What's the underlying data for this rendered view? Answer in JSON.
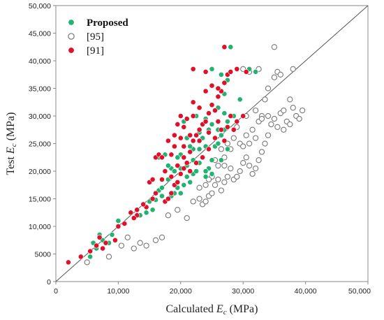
{
  "chart_data": {
    "type": "scatter",
    "title": "",
    "xlabel": {
      "prefix": "Calculated ",
      "var": "E",
      "sub": "c",
      "suffix": " (MPa)"
    },
    "ylabel": {
      "prefix": "Test ",
      "var": "E",
      "sub": "c",
      "suffix": " (MPa)"
    },
    "xlim": [
      0,
      50000
    ],
    "ylim": [
      0,
      50000
    ],
    "xticks": [
      0,
      10000,
      20000,
      30000,
      40000,
      50000
    ],
    "xtick_labels": [
      "0",
      "10,000",
      "20,000",
      "30,000",
      "40,000",
      "50,000"
    ],
    "yticks": [
      0,
      5000,
      10000,
      15000,
      20000,
      25000,
      30000,
      35000,
      40000,
      45000,
      50000
    ],
    "ytick_labels": [
      "0",
      "5000",
      "10,000",
      "15,000",
      "20,000",
      "25,000",
      "30,000",
      "35,000",
      "40,000",
      "45,000",
      "50,000"
    ],
    "grid": false,
    "legend_position": "top-left",
    "reference_line": {
      "from": [
        0,
        0
      ],
      "to": [
        50000,
        50000
      ]
    },
    "series": [
      {
        "name": "Proposed",
        "marker": "filled-circle",
        "color": "#23b370",
        "points": [
          [
            5500,
            4500
          ],
          [
            6000,
            7000
          ],
          [
            6500,
            6000
          ],
          [
            7000,
            8500
          ],
          [
            7500,
            7500
          ],
          [
            8500,
            7000
          ],
          [
            9000,
            8500
          ],
          [
            10000,
            11000
          ],
          [
            13500,
            12000
          ],
          [
            14500,
            12500
          ],
          [
            15500,
            13000
          ],
          [
            16500,
            16500
          ],
          [
            17000,
            17000
          ],
          [
            17500,
            14500
          ],
          [
            18000,
            15000
          ],
          [
            18500,
            15500
          ],
          [
            19000,
            16000
          ],
          [
            19500,
            17000
          ],
          [
            20000,
            16000
          ],
          [
            20500,
            17500
          ],
          [
            21000,
            19000
          ],
          [
            21500,
            18000
          ],
          [
            22000,
            19500
          ],
          [
            22500,
            20000
          ],
          [
            23000,
            21500
          ],
          [
            23500,
            22500
          ],
          [
            24000,
            19000
          ],
          [
            24500,
            20500
          ],
          [
            25000,
            22000
          ],
          [
            25500,
            24500
          ],
          [
            26000,
            25000
          ],
          [
            26500,
            26500
          ],
          [
            27000,
            27500
          ],
          [
            27500,
            29000
          ],
          [
            24500,
            27500
          ],
          [
            25000,
            28500
          ],
          [
            23500,
            26000
          ],
          [
            22000,
            24000
          ],
          [
            21000,
            26000
          ],
          [
            20000,
            23000
          ],
          [
            19500,
            22500
          ],
          [
            18500,
            20500
          ],
          [
            18000,
            21000
          ],
          [
            17500,
            23000
          ],
          [
            16500,
            22500
          ],
          [
            20500,
            29000
          ],
          [
            22500,
            30000
          ],
          [
            24000,
            29500
          ],
          [
            26000,
            31500
          ],
          [
            27000,
            34000
          ],
          [
            27500,
            36500
          ],
          [
            28000,
            38000
          ],
          [
            26500,
            37500
          ],
          [
            25000,
            38500
          ],
          [
            29000,
            38500
          ],
          [
            31000,
            38500
          ],
          [
            32000,
            38000
          ],
          [
            28000,
            42500
          ],
          [
            24500,
            30500
          ],
          [
            23000,
            27000
          ],
          [
            21500,
            24500
          ],
          [
            19000,
            20000
          ],
          [
            18000,
            18500
          ],
          [
            17000,
            15500
          ],
          [
            16000,
            14800
          ],
          [
            15000,
            14500
          ],
          [
            26000,
            27500
          ],
          [
            27000,
            30500
          ],
          [
            28500,
            30000
          ],
          [
            29500,
            33000
          ],
          [
            21000,
            21000
          ],
          [
            22000,
            22000
          ],
          [
            20000,
            20500
          ],
          [
            23000,
            24000
          ],
          [
            24000,
            24500
          ],
          [
            25500,
            26000
          ],
          [
            26500,
            22000
          ],
          [
            27500,
            24000
          ],
          [
            25000,
            19500
          ],
          [
            24000,
            20000
          ]
        ]
      },
      {
        "name": "[95]",
        "marker": "open-circle",
        "color": "#777777",
        "points": [
          [
            5000,
            3500
          ],
          [
            8500,
            4500
          ],
          [
            10500,
            6500
          ],
          [
            11500,
            8000
          ],
          [
            12500,
            6000
          ],
          [
            13500,
            7000
          ],
          [
            14500,
            6500
          ],
          [
            16000,
            7500
          ],
          [
            17000,
            8000
          ],
          [
            18000,
            12000
          ],
          [
            19500,
            13000
          ],
          [
            21000,
            11500
          ],
          [
            22000,
            14500
          ],
          [
            23000,
            15000
          ],
          [
            23500,
            14000
          ],
          [
            24000,
            14500
          ],
          [
            24500,
            15500
          ],
          [
            25000,
            16000
          ],
          [
            25500,
            17500
          ],
          [
            26000,
            18500
          ],
          [
            26500,
            16500
          ],
          [
            27000,
            18000
          ],
          [
            27500,
            19000
          ],
          [
            28000,
            20500
          ],
          [
            28500,
            18500
          ],
          [
            29000,
            19000
          ],
          [
            29500,
            20000
          ],
          [
            30000,
            21500
          ],
          [
            30500,
            22500
          ],
          [
            31000,
            21000
          ],
          [
            31500,
            19500
          ],
          [
            32000,
            20500
          ],
          [
            32500,
            22000
          ],
          [
            33000,
            23500
          ],
          [
            33500,
            25000
          ],
          [
            34000,
            26500
          ],
          [
            34500,
            28500
          ],
          [
            35000,
            29500
          ],
          [
            35500,
            28000
          ],
          [
            36000,
            30500
          ],
          [
            36500,
            31000
          ],
          [
            37000,
            29000
          ],
          [
            37500,
            33000
          ],
          [
            38000,
            31500
          ],
          [
            38500,
            30000
          ],
          [
            39000,
            29500
          ],
          [
            39500,
            31000
          ],
          [
            34000,
            35000
          ],
          [
            35000,
            37000
          ],
          [
            35500,
            38000
          ],
          [
            36000,
            37500
          ],
          [
            38000,
            38500
          ],
          [
            30000,
            38500
          ],
          [
            31000,
            38000
          ],
          [
            32500,
            38500
          ],
          [
            33500,
            33000
          ],
          [
            32000,
            31000
          ],
          [
            30500,
            30000
          ],
          [
            29000,
            28000
          ],
          [
            28500,
            26000
          ],
          [
            27500,
            25000
          ],
          [
            28000,
            24000
          ],
          [
            29500,
            25000
          ],
          [
            30500,
            26500
          ],
          [
            31500,
            27500
          ],
          [
            32500,
            29000
          ],
          [
            33000,
            30000
          ],
          [
            30000,
            24500
          ],
          [
            31000,
            25000
          ],
          [
            32000,
            26000
          ],
          [
            27000,
            22500
          ],
          [
            26000,
            21000
          ],
          [
            25000,
            19000
          ],
          [
            24000,
            17500
          ],
          [
            23000,
            17000
          ],
          [
            24500,
            18500
          ],
          [
            25500,
            22000
          ],
          [
            26500,
            24000
          ],
          [
            27000,
            21000
          ],
          [
            35000,
            42500
          ],
          [
            33000,
            29500
          ],
          [
            34000,
            30000
          ],
          [
            36500,
            27500
          ],
          [
            37500,
            28500
          ]
        ]
      },
      {
        "name": "[91]",
        "marker": "filled-circle",
        "color": "#e0102a",
        "points": [
          [
            2000,
            3500
          ],
          [
            4000,
            4500
          ],
          [
            5500,
            5500
          ],
          [
            6500,
            6500
          ],
          [
            7000,
            8000
          ],
          [
            7500,
            6000
          ],
          [
            8000,
            7000
          ],
          [
            9500,
            7500
          ],
          [
            12000,
            12500
          ],
          [
            13000,
            12000
          ],
          [
            14500,
            13500
          ],
          [
            15000,
            18000
          ],
          [
            15500,
            18500
          ],
          [
            16000,
            22500
          ],
          [
            16500,
            23000
          ],
          [
            17000,
            22500
          ],
          [
            17500,
            14500
          ],
          [
            18000,
            15000
          ],
          [
            18500,
            16000
          ],
          [
            19000,
            17500
          ],
          [
            19500,
            18000
          ],
          [
            20000,
            19500
          ],
          [
            20500,
            20500
          ],
          [
            21000,
            21500
          ],
          [
            21500,
            23500
          ],
          [
            22000,
            25500
          ],
          [
            22500,
            26500
          ],
          [
            23000,
            27500
          ],
          [
            23500,
            28500
          ],
          [
            24000,
            29000
          ],
          [
            24500,
            30500
          ],
          [
            25000,
            32000
          ],
          [
            25500,
            31000
          ],
          [
            26000,
            33500
          ],
          [
            26500,
            34500
          ],
          [
            27000,
            36000
          ],
          [
            27500,
            37500
          ],
          [
            28000,
            38000
          ],
          [
            22000,
            38500
          ],
          [
            24000,
            38000
          ],
          [
            27000,
            42500
          ],
          [
            18500,
            23000
          ],
          [
            19000,
            24500
          ],
          [
            20000,
            26000
          ],
          [
            20500,
            28000
          ],
          [
            21000,
            29500
          ],
          [
            22000,
            30000
          ],
          [
            23000,
            31500
          ],
          [
            20000,
            30000
          ],
          [
            19500,
            28500
          ],
          [
            18000,
            25500
          ],
          [
            17500,
            20000
          ],
          [
            18500,
            19000
          ],
          [
            19500,
            21000
          ],
          [
            21500,
            20000
          ],
          [
            22500,
            21500
          ],
          [
            23500,
            22500
          ],
          [
            24500,
            24000
          ],
          [
            25500,
            26000
          ],
          [
            26500,
            27500
          ],
          [
            27500,
            28000
          ],
          [
            28000,
            30000
          ],
          [
            29000,
            29000
          ],
          [
            30000,
            30000
          ],
          [
            26000,
            35000
          ],
          [
            25000,
            35500
          ],
          [
            29000,
            38500
          ],
          [
            30500,
            38000
          ],
          [
            24000,
            34500
          ],
          [
            22000,
            32500
          ],
          [
            20500,
            24500
          ],
          [
            19000,
            26500
          ],
          [
            17000,
            18500
          ],
          [
            16000,
            16000
          ],
          [
            15500,
            15000
          ],
          [
            14000,
            14000
          ],
          [
            13000,
            13000
          ],
          [
            12500,
            11500
          ],
          [
            11000,
            10500
          ],
          [
            10000,
            10000
          ],
          [
            27000,
            25500
          ],
          [
            28500,
            27500
          ],
          [
            26000,
            29000
          ],
          [
            24500,
            27000
          ],
          [
            23000,
            25500
          ],
          [
            21500,
            26500
          ],
          [
            20500,
            22500
          ]
        ]
      }
    ]
  }
}
